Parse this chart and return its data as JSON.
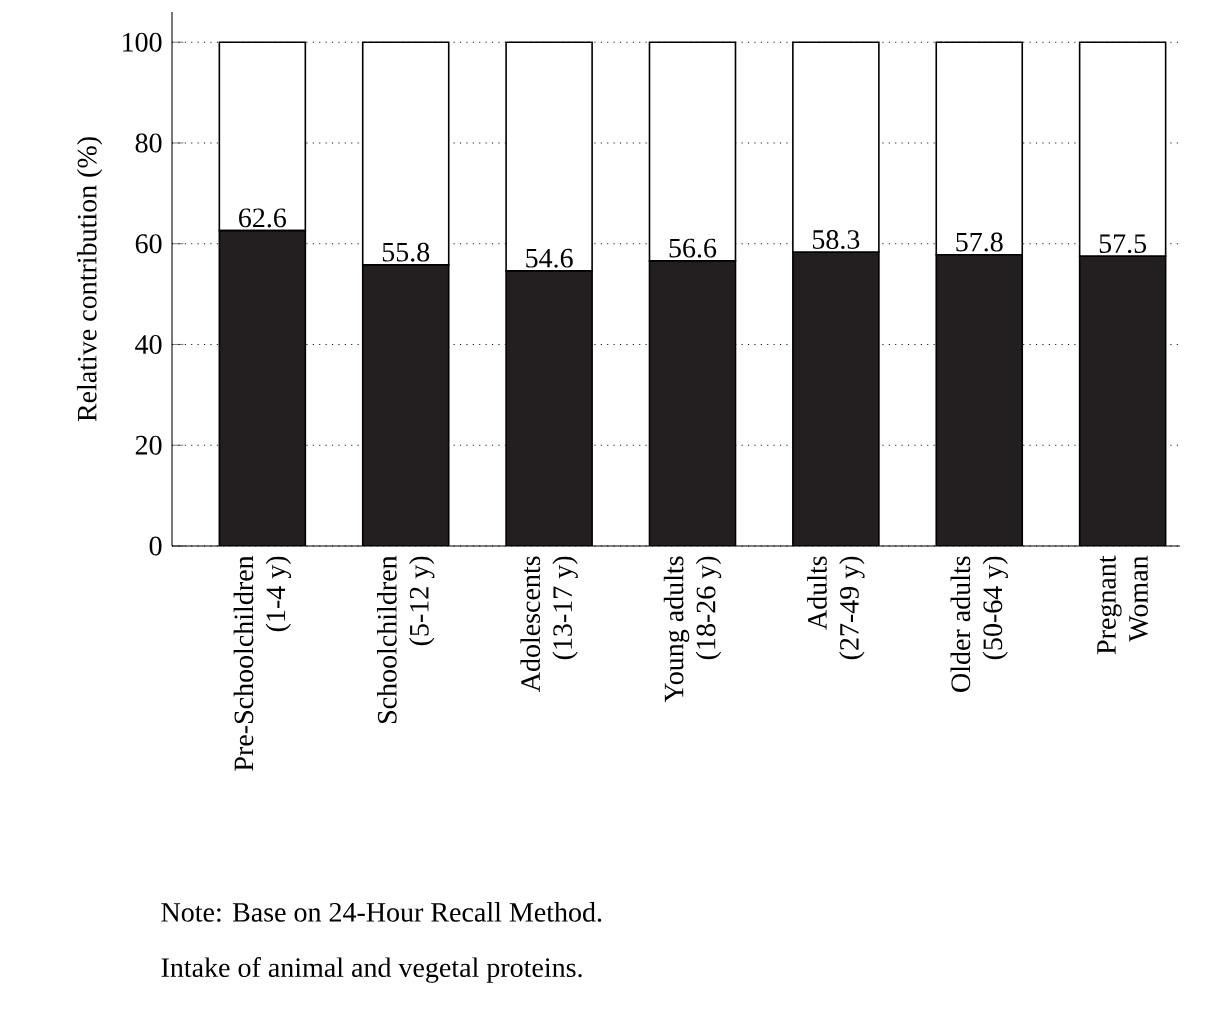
{
  "chart_data": {
    "type": "bar",
    "stacked": true,
    "ylabel": "Relative contribution (%)",
    "categories": [
      "Pre-Schoolchildren\n(1-4 y)",
      "Schoolchildren\n(5-12 y)",
      "Adolescents\n(13-17 y)",
      "Young adults\n(18-26 y)",
      "Adults\n(27-49 y)",
      "Older adults\n(50-64 y)",
      "Pregnant\nWoman"
    ],
    "series": [
      {
        "color": "#231f20",
        "values": [
          62.6,
          55.8,
          54.6,
          56.6,
          58.3,
          57.8,
          57.5
        ],
        "value_labels": [
          "62.6",
          "55.8",
          "54.6",
          "56.6",
          "58.3",
          "57.8",
          "57.5"
        ]
      },
      {
        "color": "#ffffff",
        "values": [
          37.4,
          44.2,
          45.4,
          43.4,
          41.7,
          42.2,
          42.5
        ]
      }
    ],
    "ylim": [
      0,
      106
    ],
    "yticks": [
      0,
      20,
      40,
      60,
      80,
      100
    ],
    "grid": "y",
    "annotations": [
      "Note: Base on 24-Hour Recall Method.",
      "Intake of animal and vegetal proteins."
    ]
  }
}
